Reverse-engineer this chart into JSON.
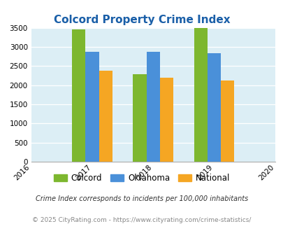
{
  "title": "Colcord Property Crime Index",
  "all_years": [
    2016,
    2017,
    2018,
    2019,
    2020
  ],
  "data_years": [
    2017,
    2018,
    2019
  ],
  "colcord": [
    3450,
    2280,
    3490
  ],
  "oklahoma": [
    2880,
    2880,
    2830
  ],
  "national": [
    2370,
    2200,
    2120
  ],
  "colcord_color": "#7db72f",
  "oklahoma_color": "#4a90d9",
  "national_color": "#f5a623",
  "bg_color": "#dceef5",
  "ylim": [
    0,
    3500
  ],
  "yticks": [
    0,
    500,
    1000,
    1500,
    2000,
    2500,
    3000,
    3500
  ],
  "bar_width": 0.22,
  "title_color": "#1a5fa8",
  "footnote1": "Crime Index corresponds to incidents per 100,000 inhabitants",
  "footnote2": "© 2025 CityRating.com - https://www.cityrating.com/crime-statistics/",
  "legend_labels": [
    "Colcord",
    "Oklahoma",
    "National"
  ],
  "footnote1_color": "#333333",
  "footnote2_color": "#888888"
}
